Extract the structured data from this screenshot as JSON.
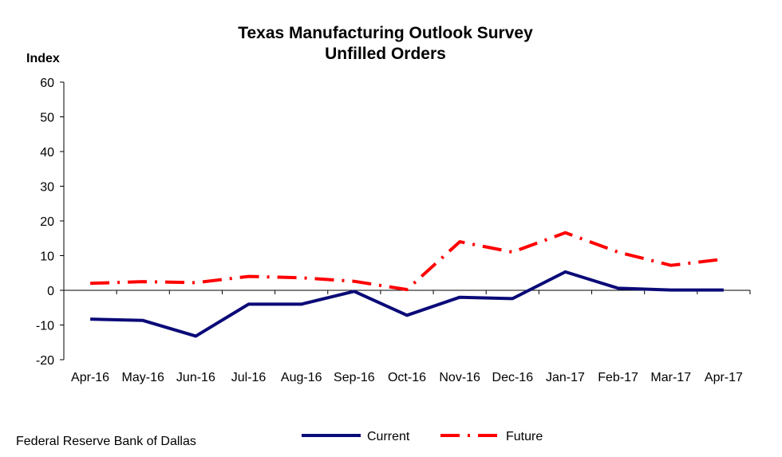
{
  "chart_data": {
    "type": "line",
    "title": "Texas Manufacturing Outlook Survey",
    "subtitle": "Unfilled Orders",
    "ylabel": "Index",
    "xlabel": "",
    "ylim": [
      -20,
      60
    ],
    "yticks": [
      60,
      50,
      40,
      30,
      20,
      10,
      0,
      -10,
      -20
    ],
    "yticks_labels": [
      "60",
      "50",
      "40",
      "30",
      "20",
      "10",
      "0",
      "-10",
      "-20"
    ],
    "grid": false,
    "legend_position": "bottom-center",
    "categories": [
      "Apr-16",
      "May-16",
      "Jun-16",
      "Jul-16",
      "Aug-16",
      "Sep-16",
      "Oct-16",
      "Nov-16",
      "Dec-16",
      "Jan-17",
      "Feb-17",
      "Mar-17",
      "Apr-17"
    ],
    "series": [
      {
        "name": "Current",
        "color": "#0a0a78",
        "line_style": "solid",
        "values": [
          -8.3,
          -8.7,
          -13.2,
          -4.0,
          -4.0,
          -0.3,
          -7.2,
          -2.0,
          -2.4,
          5.3,
          0.6,
          0.1,
          0.1
        ]
      },
      {
        "name": "Future",
        "color": "#ff0000",
        "line_style": "dash-dot",
        "values": [
          2.0,
          2.5,
          2.2,
          4.0,
          3.6,
          2.6,
          0.2,
          14.0,
          11.0,
          16.6,
          11.0,
          7.2,
          9.0
        ]
      }
    ],
    "source": "Federal Reserve Bank of Dallas"
  }
}
